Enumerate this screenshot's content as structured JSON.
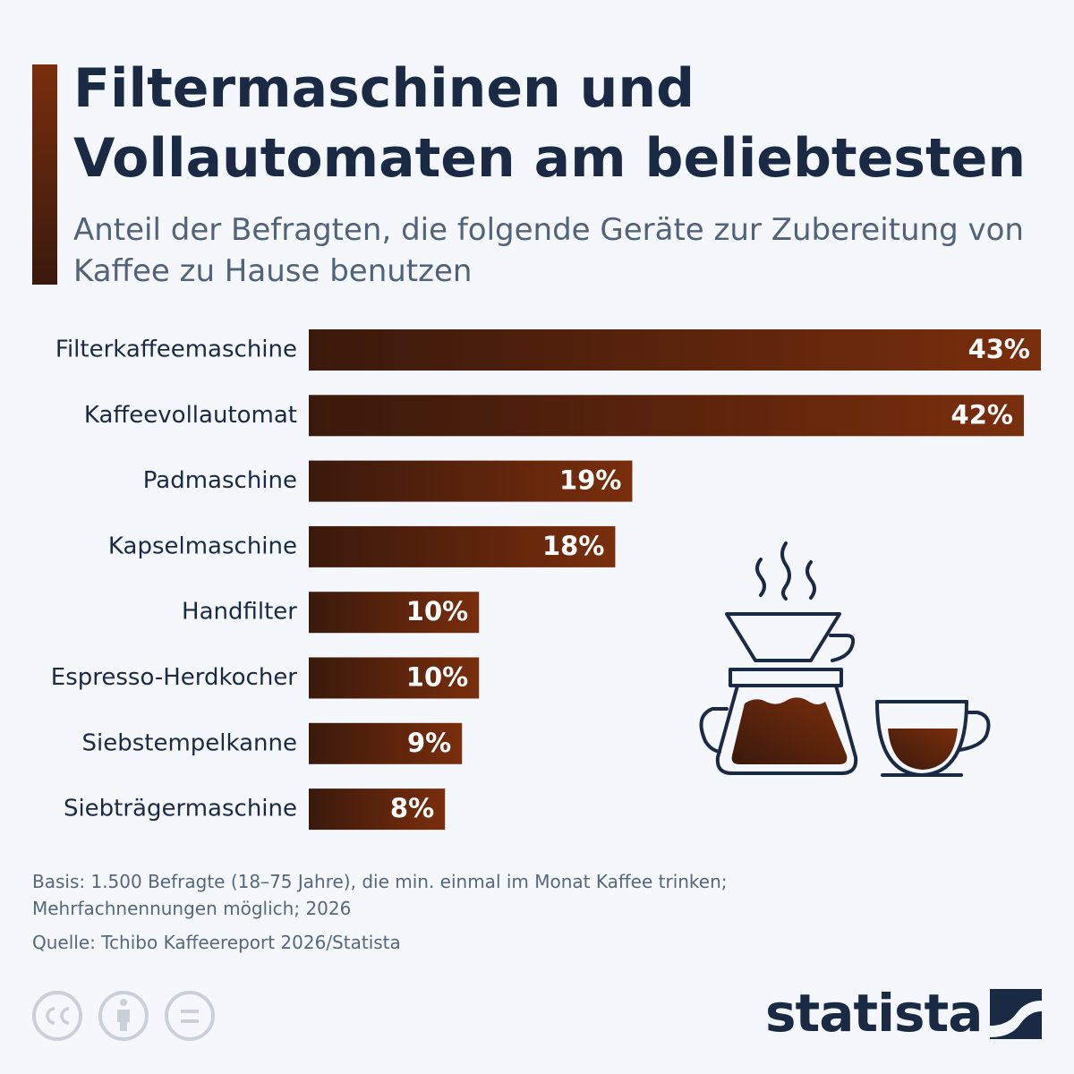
{
  "chart_data": {
    "type": "bar",
    "orientation": "horizontal",
    "title": "Filtermaschinen und Vollautomaten am beliebtesten",
    "subtitle": "Anteil der Befragten, die folgende Geräte zur Zubereitung von Kaffee zu Hause benutzen",
    "categories": [
      "Filterkaffeemaschine",
      "Kaffeevollautomat",
      "Padmaschine",
      "Kapselmaschine",
      "Handfilter",
      "Espresso-Herdkocher",
      "Siebstempelkanne",
      "Siebträgermaschine"
    ],
    "values": [
      43,
      42,
      19,
      18,
      10,
      10,
      9,
      8
    ],
    "value_labels": [
      "43%",
      "42%",
      "19%",
      "18%",
      "10%",
      "10%",
      "9%",
      "8%"
    ],
    "colors": [
      "#3a190c",
      "#7a2e0c"
    ],
    "note": "Basis: 1.500 Befragte (18–75 Jahre), die min. einmal im Monat Kaffee trinken; Mehrfachnennungen möglich; 2026",
    "source": "Quelle: Tchibo Kaffeereport 2026/Statista",
    "logo": "statista"
  }
}
